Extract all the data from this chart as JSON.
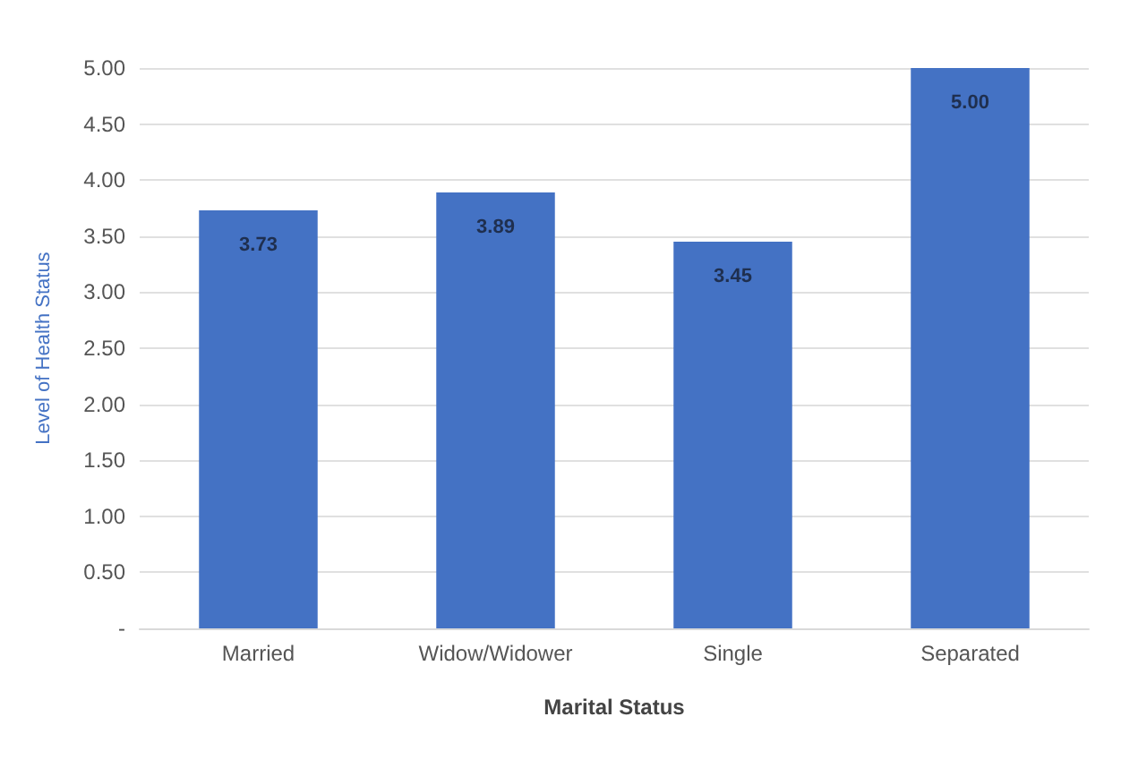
{
  "chart_data": {
    "type": "bar",
    "xlabel": "Marital Status",
    "ylabel": "Level of Health Status",
    "categories": [
      "Married",
      "Widow/Widower",
      "Single",
      "Separated"
    ],
    "values": [
      3.73,
      3.89,
      3.45,
      5.0
    ],
    "value_labels": [
      "3.73",
      "3.89",
      "3.45",
      "5.00"
    ],
    "color": "#4472c4",
    "ylim": [
      0,
      5
    ],
    "yticks": [
      {
        "value": 0,
        "label": "-"
      },
      {
        "value": 0.5,
        "label": "0.50"
      },
      {
        "value": 1,
        "label": "1.00"
      },
      {
        "value": 1.5,
        "label": "1.50"
      },
      {
        "value": 2,
        "label": "2.00"
      },
      {
        "value": 2.5,
        "label": "2.50"
      },
      {
        "value": 3,
        "label": "3.00"
      },
      {
        "value": 3.5,
        "label": "3.50"
      },
      {
        "value": 4,
        "label": "4.00"
      },
      {
        "value": 4.5,
        "label": "4.50"
      },
      {
        "value": 5,
        "label": "5.00"
      }
    ],
    "grid": "y"
  }
}
